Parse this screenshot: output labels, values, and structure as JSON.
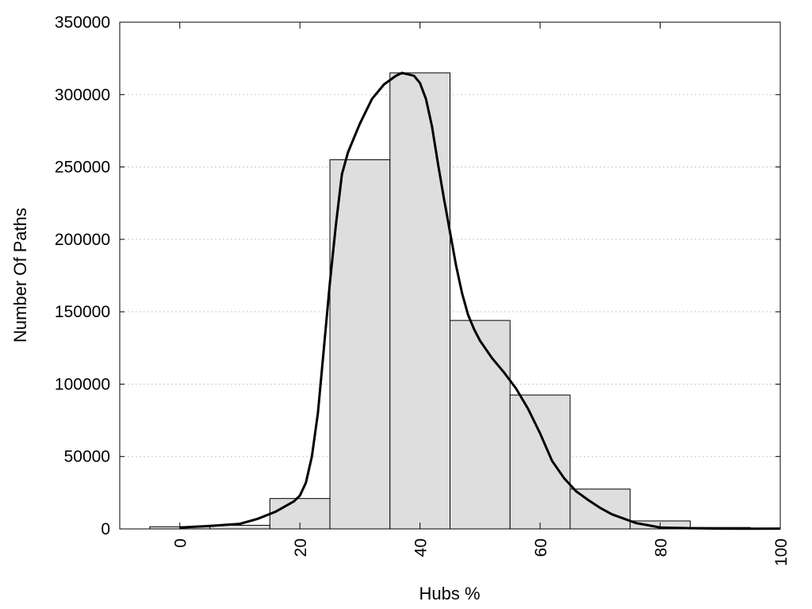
{
  "chart_data": {
    "type": "bar",
    "title": "",
    "xlabel": "Hubs %",
    "ylabel": "Number Of Paths",
    "xlim": [
      -10,
      100
    ],
    "ylim": [
      0,
      350000
    ],
    "x_ticks": [
      0,
      20,
      40,
      60,
      80,
      100
    ],
    "y_ticks": [
      0,
      50000,
      100000,
      150000,
      200000,
      250000,
      300000,
      350000
    ],
    "grid": "horizontal dotted",
    "bar_color": "#dedede",
    "line_color": "#000000",
    "bins": [
      {
        "from": -5,
        "to": 5,
        "value": 1500
      },
      {
        "from": 5,
        "to": 15,
        "value": 2500
      },
      {
        "from": 15,
        "to": 25,
        "value": 21000
      },
      {
        "from": 25,
        "to": 35,
        "value": 255000
      },
      {
        "from": 35,
        "to": 45,
        "value": 315000
      },
      {
        "from": 45,
        "to": 55,
        "value": 144000
      },
      {
        "from": 55,
        "to": 65,
        "value": 92500
      },
      {
        "from": 65,
        "to": 75,
        "value": 27500
      },
      {
        "from": 75,
        "to": 85,
        "value": 5500
      },
      {
        "from": 85,
        "to": 95,
        "value": 1000
      }
    ],
    "density_curve": {
      "x": [
        0,
        5,
        10,
        13,
        16,
        19,
        20,
        21,
        22,
        23,
        24,
        25,
        26,
        27,
        28,
        29,
        30,
        32,
        34,
        36,
        37,
        38,
        39,
        40,
        41,
        42,
        43,
        44,
        45,
        46,
        47,
        48,
        49,
        50,
        52,
        54,
        56,
        58,
        60,
        62,
        64,
        66,
        68,
        70,
        72,
        74,
        76,
        78,
        80,
        85,
        90,
        95,
        100
      ],
      "y": [
        1000,
        2000,
        3500,
        7000,
        12000,
        19000,
        23000,
        32000,
        50000,
        80000,
        125000,
        170000,
        210000,
        245000,
        260000,
        270000,
        280000,
        297000,
        307000,
        313000,
        315000,
        314000,
        313000,
        308000,
        297000,
        278000,
        252000,
        228000,
        205000,
        182000,
        163000,
        148000,
        138000,
        130000,
        118000,
        108000,
        97000,
        83000,
        66000,
        47000,
        35000,
        26000,
        20000,
        14500,
        10000,
        7000,
        4000,
        2500,
        1000,
        500,
        200,
        100,
        200
      ]
    }
  }
}
